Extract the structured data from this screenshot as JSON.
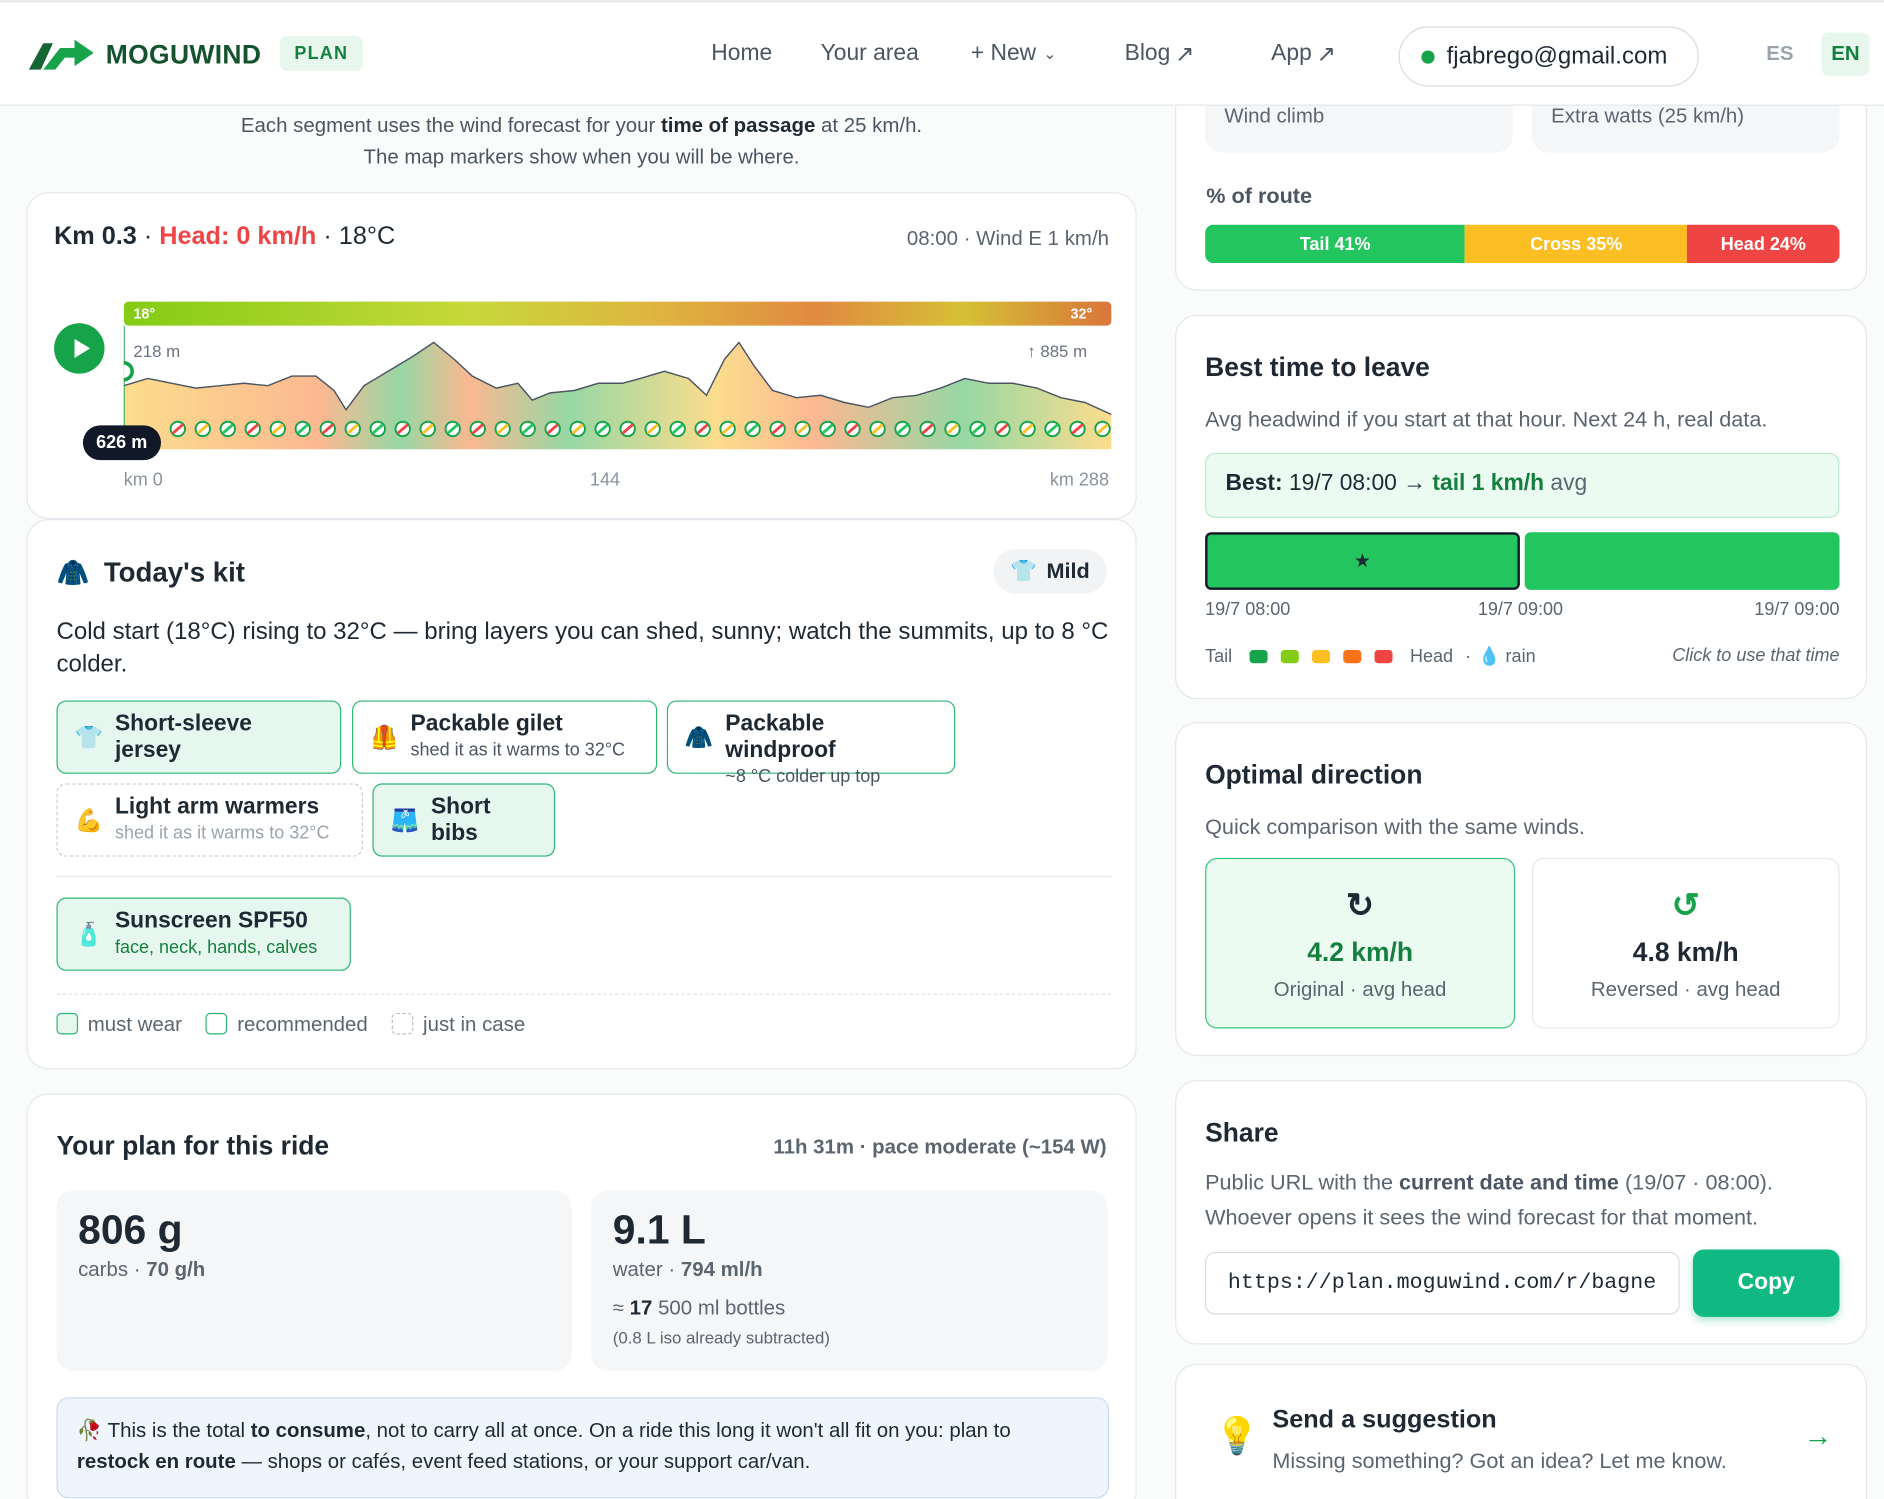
{
  "header": {
    "logo_text": "MOGUWIND",
    "plan_badge": "PLAN",
    "nav": {
      "home": "Home",
      "your_area": "Your area",
      "new": "+ New",
      "blog": "Blog",
      "app": "App"
    },
    "user_email": "fjabrego@gmail.com",
    "lang_es": "ES",
    "lang_en": "EN"
  },
  "intro": {
    "line1_pre": "Each segment uses the wind forecast for your ",
    "line1_bold": "time of passage",
    "line1_post": " at 25 km/h.",
    "line2": "The map markers show when you will be where."
  },
  "profile": {
    "km": "Km 0.3",
    "head": "Head: 0 km/h",
    "temp": "18°C",
    "sep": "·",
    "right": "08:00 · Wind E 1 km/h",
    "temp_start": "18°",
    "temp_end": "32°",
    "elev_start": "218 m",
    "elev_max": "↑ 885 m",
    "current_elev": "626 m",
    "x_start": "km 0",
    "x_mid": "144",
    "x_end": "km 288"
  },
  "kit": {
    "title": "Today's kit",
    "badge": "Mild",
    "description": "Cold start (18°C) rising to 32°C — bring layers you can shed, sunny; watch the summits, up to 8 °C colder.",
    "items": [
      {
        "label": "Short-sleeve jersey",
        "sub": ""
      },
      {
        "label": "Packable gilet",
        "sub": "shed it as it warms to 32°C"
      },
      {
        "label": "Packable windproof",
        "sub": "~8 °C colder up top"
      },
      {
        "label": "Light arm warmers",
        "sub": "shed it as it warms to 32°C"
      },
      {
        "label": "Short bibs",
        "sub": ""
      },
      {
        "label": "Sunscreen SPF50",
        "sub": "face, neck, hands, calves"
      }
    ],
    "legend": {
      "must": "must wear",
      "rec": "recommended",
      "jic": "just in case"
    }
  },
  "plan": {
    "title": "Your plan for this ride",
    "meta": "11h 31m · pace moderate (~154 W)",
    "carbs_value": "806 g",
    "carbs_label": "carbs · ",
    "carbs_rate": "70 g/h",
    "water_value": "9.1 L",
    "water_label": "water · ",
    "water_rate": "794 ml/h",
    "bottles_pre": "≈ ",
    "bottles_n": "17",
    "bottles_post": " 500 ml bottles",
    "iso_note": "(0.8 L iso already subtracted)",
    "note_a": "This is the total ",
    "note_b": "to consume",
    "note_c": ", not to carry all at once. On a ride this long it won't all fit on you: plan to ",
    "note_d": "restock en route",
    "note_e": " — shops or cafés, event feed stations, or your support car/van."
  },
  "windstats": {
    "wind_climb": "Wind climb",
    "extra_watts": "Extra watts (25 km/h)",
    "route_label": "% of route",
    "tail": "Tail 41%",
    "cross": "Cross 35%",
    "head": "Head 24%",
    "tail_pct": 41,
    "cross_pct": 35,
    "head_pct": 24
  },
  "best_time": {
    "title": "Best time to leave",
    "subtitle": "Avg headwind if you start at that hour. Next 24 h, real data.",
    "best_label": "Best:",
    "best_value": " 19/7 08:00 → ",
    "best_tail": "tail 1 km/h",
    "best_avg": " avg",
    "star": "★",
    "t1": "19/7 08:00",
    "t2": "19/7 09:00",
    "t3": "19/7 09:00",
    "legend_tail": "Tail",
    "legend_head": "Head",
    "legend_dot": "·",
    "legend_rain": "rain",
    "click_hint": "Click to use that time",
    "colors": [
      "#16a34a",
      "#84cc16",
      "#fbbf24",
      "#f97316",
      "#ef4444"
    ]
  },
  "direction": {
    "title": "Optimal direction",
    "subtitle": "Quick comparison with the same winds.",
    "orig_value": "4.2 km/h",
    "orig_label": "Original · avg head",
    "rev_value": "4.8 km/h",
    "rev_label": "Reversed · avg head"
  },
  "share": {
    "title": "Share",
    "text_a": "Public URL with the ",
    "text_b": "current date and time",
    "text_c": " (19/07 · 08:00). Whoever opens it sees the wind forecast for that moment.",
    "url": "https://plan.moguwind.com/r/bagne",
    "copy": "Copy"
  },
  "suggest": {
    "title": "Send a suggestion",
    "text": "Missing something? Got an idea? Let me know."
  }
}
